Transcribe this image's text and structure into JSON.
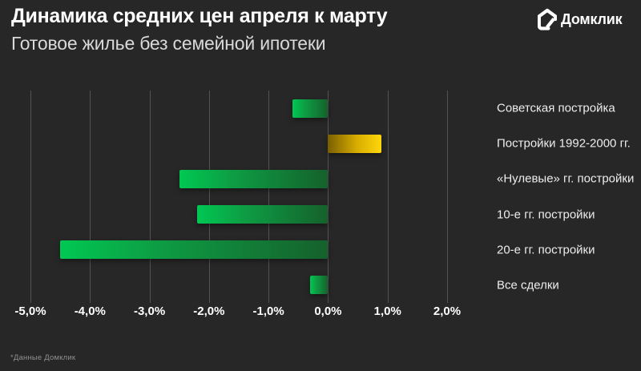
{
  "header": {
    "title": "Динамика средних цен апреля к марту",
    "subtitle": "Готовое жилье без семейной ипотеки"
  },
  "brand": {
    "name": "Домклик",
    "icon": "domclick-house-icon"
  },
  "footnote": "*Данные Домклик",
  "colors": {
    "background": "#272727",
    "grid": "#5c5c5c",
    "title_text": "#ffffff",
    "subtitle_text": "#d9d9d9",
    "axis_text": "#ffffff",
    "category_text": "#ededed",
    "footnote_text": "#8f8f8f",
    "negative_bar_start": "#00c853",
    "negative_bar_end": "#15612c",
    "positive_bar_start": "#7a5f00",
    "positive_bar_end": "#ffd60a"
  },
  "chart_data": {
    "type": "bar",
    "orientation": "horizontal",
    "title": "Динамика средних цен апреля к марту",
    "subtitle": "Готовое жилье без семейной ипотеки",
    "categories": [
      "Советская постройка",
      "Постройки 1992-2000 гг.",
      "«Нулевые» гг. постройки",
      "10-е гг. постройки",
      "20-е гг. постройки",
      "Все сделки"
    ],
    "values": [
      -0.6,
      0.9,
      -2.5,
      -2.2,
      -4.5,
      -0.3
    ],
    "unit": "%",
    "xlim": [
      -5,
      2
    ],
    "x_ticks": [
      {
        "value": -5,
        "label": "-5,0%"
      },
      {
        "value": -4,
        "label": "-4,0%"
      },
      {
        "value": -3,
        "label": "-3,0%"
      },
      {
        "value": -2,
        "label": "-2,0%"
      },
      {
        "value": -1,
        "label": "-1,0%"
      },
      {
        "value": 0,
        "label": "0,0%"
      },
      {
        "value": 1,
        "label": "1,0%"
      },
      {
        "value": 2,
        "label": "2,0%"
      }
    ],
    "grid": true,
    "legend_position": "none",
    "category_labels_position": "right",
    "bar_color_rule": "negative bars green gradient (bright at tip), positive bars gold gradient (bright at tip)"
  }
}
